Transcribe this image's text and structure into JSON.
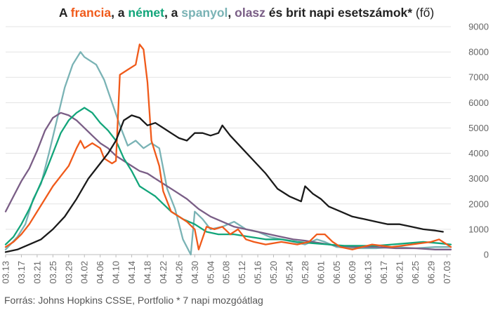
{
  "title_parts": [
    {
      "text": "A ",
      "color": "#222222"
    },
    {
      "text": "francia",
      "color": "#f05a1a"
    },
    {
      "text": ", a ",
      "color": "#222222"
    },
    {
      "text": "német",
      "color": "#12a57a"
    },
    {
      "text": ", a ",
      "color": "#222222"
    },
    {
      "text": "spanyol",
      "color": "#7ab3b5"
    },
    {
      "text": ", ",
      "color": "#222222"
    },
    {
      "text": "olasz",
      "color": "#7a5e86"
    },
    {
      "text": " és ",
      "color": "#222222"
    },
    {
      "text": "brit",
      "color": "#222222"
    },
    {
      "text": " napi esetszámok*",
      "color": "#222222"
    }
  ],
  "title_unit": " (fő)",
  "source": "Forrás: Johns Hopkins CSSE, Portfolio  * 7 napi mozgóátlag",
  "chart_data": {
    "type": "line",
    "x_start": "03.13",
    "x_end": "07.04",
    "xtick_labels": [
      "03.13",
      "03.17",
      "03.21",
      "03.25",
      "03.29",
      "04.02",
      "04.06",
      "04.10",
      "04.14",
      "04.18",
      "04.22",
      "04.26",
      "04.30",
      "05.04",
      "05.08",
      "05.12",
      "05.16",
      "05.20",
      "05.24",
      "05.28",
      "06.01",
      "06.05",
      "06.09",
      "06.13",
      "06.17",
      "06.21",
      "06.25",
      "06.29",
      "07.03"
    ],
    "yticks": [
      0,
      1000,
      2000,
      3000,
      4000,
      5000,
      6000,
      7000,
      8000,
      9000
    ],
    "ylim": [
      0,
      9000
    ],
    "grid": "horizontal",
    "y_axis_side": "right",
    "series": [
      {
        "name": "spanyol",
        "color": "#7ab3b5",
        "points": [
          [
            "03.13",
            200
          ],
          [
            "03.16",
            700
          ],
          [
            "03.18",
            1200
          ],
          [
            "03.20",
            2200
          ],
          [
            "03.22",
            2800
          ],
          [
            "03.24",
            4000
          ],
          [
            "03.26",
            5300
          ],
          [
            "03.28",
            6600
          ],
          [
            "03.30",
            7500
          ],
          [
            "04.01",
            8000
          ],
          [
            "04.02",
            7800
          ],
          [
            "04.05",
            7500
          ],
          [
            "04.07",
            6900
          ],
          [
            "04.09",
            6000
          ],
          [
            "04.11",
            5100
          ],
          [
            "04.13",
            4300
          ],
          [
            "04.15",
            4500
          ],
          [
            "04.17",
            4200
          ],
          [
            "04.19",
            4400
          ],
          [
            "04.21",
            4200
          ],
          [
            "04.23",
            2600
          ],
          [
            "04.25",
            1800
          ],
          [
            "04.27",
            600
          ],
          [
            "04.29",
            0
          ],
          [
            "04.30",
            1700
          ],
          [
            "05.02",
            1400
          ],
          [
            "05.04",
            1000
          ],
          [
            "05.07",
            1100
          ],
          [
            "05.10",
            1300
          ],
          [
            "05.13",
            1000
          ],
          [
            "05.16",
            900
          ],
          [
            "05.19",
            700
          ],
          [
            "05.22",
            600
          ],
          [
            "05.25",
            500
          ],
          [
            "05.28",
            400
          ],
          [
            "05.31",
            600
          ],
          [
            "06.02",
            500
          ],
          [
            "06.05",
            300
          ],
          [
            "06.10",
            250
          ],
          [
            "06.15",
            250
          ],
          [
            "06.20",
            300
          ],
          [
            "06.25",
            250
          ],
          [
            "06.30",
            300
          ],
          [
            "07.04",
            300
          ]
        ]
      },
      {
        "name": "olasz",
        "color": "#7a5e86",
        "points": [
          [
            "03.13",
            1700
          ],
          [
            "03.15",
            2300
          ],
          [
            "03.17",
            2900
          ],
          [
            "03.19",
            3400
          ],
          [
            "03.21",
            4100
          ],
          [
            "03.23",
            4900
          ],
          [
            "03.25",
            5400
          ],
          [
            "03.27",
            5600
          ],
          [
            "03.29",
            5500
          ],
          [
            "03.31",
            5300
          ],
          [
            "04.02",
            5000
          ],
          [
            "04.04",
            4700
          ],
          [
            "04.06",
            4400
          ],
          [
            "04.08",
            4200
          ],
          [
            "04.10",
            3900
          ],
          [
            "04.12",
            3700
          ],
          [
            "04.14",
            3500
          ],
          [
            "04.16",
            3300
          ],
          [
            "04.18",
            3200
          ],
          [
            "04.20",
            3000
          ],
          [
            "04.22",
            2800
          ],
          [
            "04.25",
            2500
          ],
          [
            "04.28",
            2200
          ],
          [
            "05.01",
            1800
          ],
          [
            "05.04",
            1500
          ],
          [
            "05.07",
            1300
          ],
          [
            "05.10",
            1100
          ],
          [
            "05.13",
            1000
          ],
          [
            "05.16",
            900
          ],
          [
            "05.19",
            800
          ],
          [
            "05.22",
            700
          ],
          [
            "05.25",
            600
          ],
          [
            "05.28",
            550
          ],
          [
            "06.01",
            450
          ],
          [
            "06.05",
            350
          ],
          [
            "06.10",
            300
          ],
          [
            "06.15",
            300
          ],
          [
            "06.20",
            250
          ],
          [
            "06.25",
            250
          ],
          [
            "06.30",
            200
          ],
          [
            "07.04",
            200
          ]
        ]
      },
      {
        "name": "német",
        "color": "#12a57a",
        "points": [
          [
            "03.13",
            400
          ],
          [
            "03.15",
            700
          ],
          [
            "03.17",
            1200
          ],
          [
            "03.19",
            1800
          ],
          [
            "03.21",
            2500
          ],
          [
            "03.23",
            3200
          ],
          [
            "03.25",
            4000
          ],
          [
            "03.27",
            4800
          ],
          [
            "03.29",
            5300
          ],
          [
            "03.31",
            5600
          ],
          [
            "04.02",
            5800
          ],
          [
            "04.04",
            5600
          ],
          [
            "04.06",
            5200
          ],
          [
            "04.08",
            4900
          ],
          [
            "04.10",
            4500
          ],
          [
            "04.12",
            3800
          ],
          [
            "04.14",
            3300
          ],
          [
            "04.16",
            2700
          ],
          [
            "04.18",
            2500
          ],
          [
            "04.20",
            2300
          ],
          [
            "04.22",
            2000
          ],
          [
            "04.24",
            1700
          ],
          [
            "04.27",
            1400
          ],
          [
            "04.30",
            1200
          ],
          [
            "05.03",
            900
          ],
          [
            "05.06",
            800
          ],
          [
            "05.10",
            800
          ],
          [
            "05.14",
            700
          ],
          [
            "05.18",
            600
          ],
          [
            "05.22",
            600
          ],
          [
            "05.26",
            500
          ],
          [
            "05.30",
            450
          ],
          [
            "06.03",
            400
          ],
          [
            "06.07",
            350
          ],
          [
            "06.11",
            350
          ],
          [
            "06.15",
            350
          ],
          [
            "06.19",
            400
          ],
          [
            "06.23",
            450
          ],
          [
            "06.27",
            500
          ],
          [
            "07.01",
            450
          ],
          [
            "07.04",
            400
          ]
        ]
      },
      {
        "name": "francia",
        "color": "#f05a1a",
        "points": [
          [
            "03.13",
            300
          ],
          [
            "03.15",
            500
          ],
          [
            "03.17",
            800
          ],
          [
            "03.19",
            1200
          ],
          [
            "03.21",
            1700
          ],
          [
            "03.23",
            2200
          ],
          [
            "03.25",
            2700
          ],
          [
            "03.27",
            3100
          ],
          [
            "03.29",
            3500
          ],
          [
            "03.31",
            4200
          ],
          [
            "04.01",
            4500
          ],
          [
            "04.02",
            4200
          ],
          [
            "04.04",
            4400
          ],
          [
            "04.06",
            4200
          ],
          [
            "04.07",
            3800
          ],
          [
            "04.09",
            3600
          ],
          [
            "04.10",
            3700
          ],
          [
            "04.11",
            7100
          ],
          [
            "04.13",
            7300
          ],
          [
            "04.15",
            7500
          ],
          [
            "04.16",
            8300
          ],
          [
            "04.17",
            8100
          ],
          [
            "04.18",
            6800
          ],
          [
            "04.19",
            4500
          ],
          [
            "04.21",
            3500
          ],
          [
            "04.22",
            2500
          ],
          [
            "04.24",
            1700
          ],
          [
            "04.26",
            1500
          ],
          [
            "04.28",
            1300
          ],
          [
            "04.30",
            1000
          ],
          [
            "05.01",
            200
          ],
          [
            "05.03",
            1100
          ],
          [
            "05.05",
            1000
          ],
          [
            "05.07",
            1100
          ],
          [
            "05.09",
            800
          ],
          [
            "05.11",
            1000
          ],
          [
            "05.13",
            600
          ],
          [
            "05.15",
            500
          ],
          [
            "05.18",
            400
          ],
          [
            "05.22",
            500
          ],
          [
            "05.26",
            400
          ],
          [
            "05.29",
            500
          ],
          [
            "05.31",
            800
          ],
          [
            "06.02",
            800
          ],
          [
            "06.04",
            500
          ],
          [
            "06.06",
            300
          ],
          [
            "06.09",
            200
          ],
          [
            "06.14",
            400
          ],
          [
            "06.19",
            300
          ],
          [
            "06.24",
            400
          ],
          [
            "06.29",
            500
          ],
          [
            "07.01",
            600
          ],
          [
            "07.04",
            300
          ]
        ]
      },
      {
        "name": "brit",
        "color": "#1a1a1a",
        "points": [
          [
            "03.13",
            100
          ],
          [
            "03.16",
            200
          ],
          [
            "03.19",
            400
          ],
          [
            "03.22",
            600
          ],
          [
            "03.25",
            1000
          ],
          [
            "03.28",
            1500
          ],
          [
            "03.31",
            2200
          ],
          [
            "04.03",
            3000
          ],
          [
            "04.06",
            3600
          ],
          [
            "04.08",
            4000
          ],
          [
            "04.10",
            4500
          ],
          [
            "04.12",
            5300
          ],
          [
            "04.14",
            5500
          ],
          [
            "04.16",
            5400
          ],
          [
            "04.18",
            5100
          ],
          [
            "04.20",
            5200
          ],
          [
            "04.22",
            5000
          ],
          [
            "04.24",
            4800
          ],
          [
            "04.26",
            4600
          ],
          [
            "04.28",
            4500
          ],
          [
            "04.30",
            4800
          ],
          [
            "05.02",
            4800
          ],
          [
            "05.04",
            4700
          ],
          [
            "05.06",
            4800
          ],
          [
            "05.07",
            5100
          ],
          [
            "05.09",
            4700
          ],
          [
            "05.12",
            4200
          ],
          [
            "05.15",
            3700
          ],
          [
            "05.18",
            3200
          ],
          [
            "05.21",
            2600
          ],
          [
            "05.24",
            2300
          ],
          [
            "05.27",
            2100
          ],
          [
            "05.28",
            2700
          ],
          [
            "05.30",
            2400
          ],
          [
            "06.01",
            2200
          ],
          [
            "06.03",
            1900
          ],
          [
            "06.06",
            1700
          ],
          [
            "06.09",
            1500
          ],
          [
            "06.12",
            1400
          ],
          [
            "06.15",
            1300
          ],
          [
            "06.18",
            1200
          ],
          [
            "06.21",
            1200
          ],
          [
            "06.24",
            1100
          ],
          [
            "06.27",
            1000
          ],
          [
            "06.30",
            950
          ],
          [
            "07.02",
            900
          ]
        ]
      }
    ]
  }
}
